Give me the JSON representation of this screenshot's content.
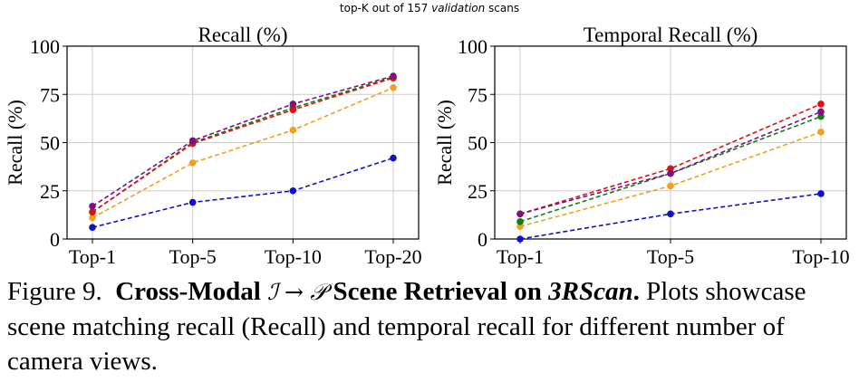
{
  "suptitle": {
    "pre": "top-K out of 157 ",
    "emph": "validation",
    "post": " scans"
  },
  "colors": {
    "blue": "#1010c8",
    "orange": "#f0a020",
    "red": "#e01010",
    "green": "#108010",
    "purple": "#801080",
    "grid": "#cccccc"
  },
  "chart_data": [
    {
      "type": "line",
      "title": "Recall (%)",
      "xlabel": "",
      "ylabel": "Recall (%)",
      "categories": [
        "Top-1",
        "Top-5",
        "Top-10",
        "Top-20"
      ],
      "ylim": [
        0,
        100
      ],
      "yticks": [
        0,
        25,
        50,
        75,
        100
      ],
      "grid": true,
      "linestyle": "dashed",
      "series": [
        {
          "name": "blue",
          "color": "#1010c8",
          "values": [
            6,
            19,
            25,
            42
          ]
        },
        {
          "name": "orange",
          "color": "#f0a020",
          "values": [
            11,
            39.5,
            56.5,
            78.5
          ]
        },
        {
          "name": "green",
          "color": "#108010",
          "values": [
            14,
            50,
            68,
            84
          ]
        },
        {
          "name": "red",
          "color": "#e01010",
          "values": [
            14,
            49.5,
            67,
            83.5
          ]
        },
        {
          "name": "purple",
          "color": "#801080",
          "values": [
            17,
            51,
            70,
            84.5
          ]
        }
      ]
    },
    {
      "type": "line",
      "title": "Temporal Recall (%)",
      "xlabel": "",
      "ylabel": "Recall (%)",
      "categories": [
        "Top-1",
        "Top-5",
        "Top-10"
      ],
      "ylim": [
        0,
        100
      ],
      "yticks": [
        0,
        25,
        50,
        75,
        100
      ],
      "grid": true,
      "linestyle": "dashed",
      "series": [
        {
          "name": "blue",
          "color": "#1010c8",
          "values": [
            0,
            13,
            23.5
          ]
        },
        {
          "name": "orange",
          "color": "#f0a020",
          "values": [
            6.5,
            27.5,
            55.5
          ]
        },
        {
          "name": "green",
          "color": "#108010",
          "values": [
            9,
            34,
            63.5
          ]
        },
        {
          "name": "red",
          "color": "#e01010",
          "values": [
            13,
            36.5,
            70
          ]
        },
        {
          "name": "purple",
          "color": "#801080",
          "values": [
            13,
            34,
            66
          ]
        }
      ]
    }
  ],
  "caption": {
    "prefix": "Figure 9.",
    "bold1": "Cross-Modal",
    "sym1": "ℐ",
    "arrow": "→",
    "sym2": "𝒫",
    "bold2": "Scene Retrieval on",
    "bold_italic": "3RScan",
    "dot": ".",
    "body": "Plots showcase scene matching recall (Recall) and temporal recall for different number of camera views."
  }
}
